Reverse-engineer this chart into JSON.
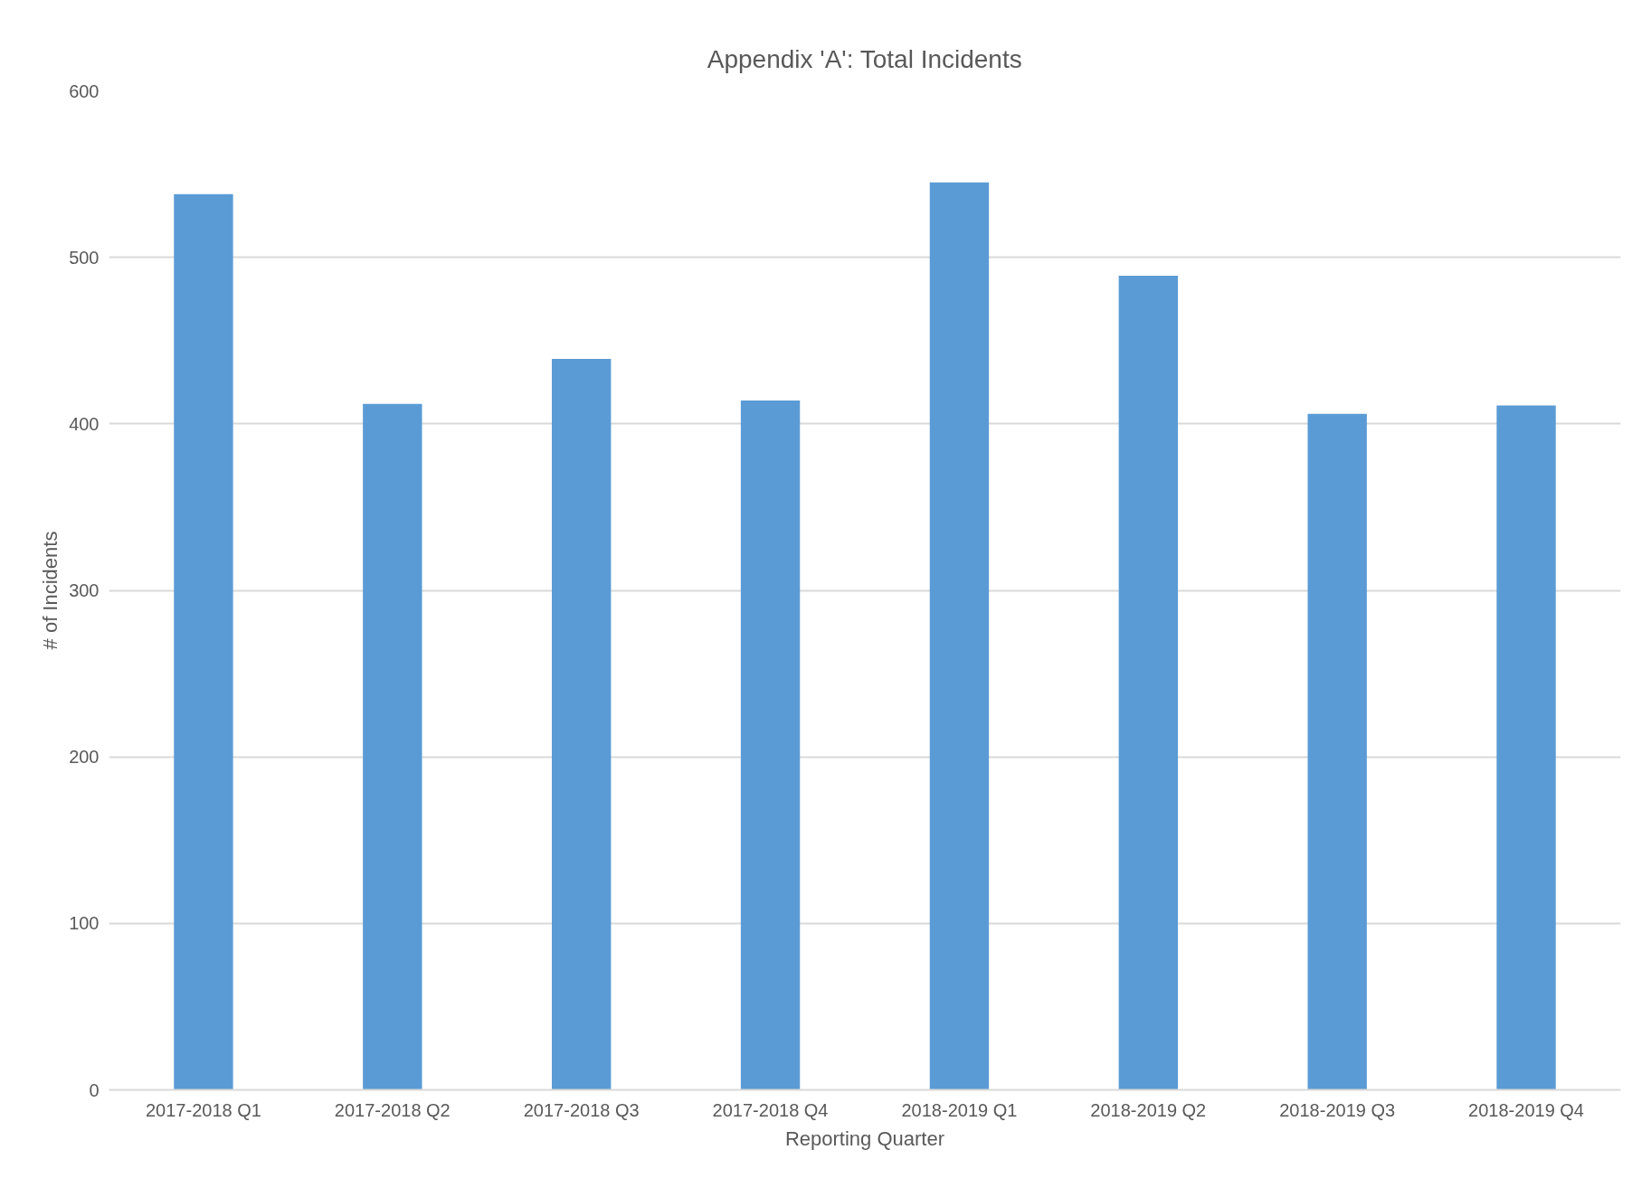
{
  "chart_data": {
    "type": "bar",
    "title": "Appendix 'A': Total Incidents",
    "xlabel": "Reporting Quarter",
    "ylabel": "# of Incidents",
    "categories": [
      "2017-2018 Q1",
      "2017-2018 Q2",
      "2017-2018 Q3",
      "2017-2018 Q4",
      "2018-2019 Q1",
      "2018-2019 Q2",
      "2018-2019 Q3",
      "2018-2019 Q4"
    ],
    "values": [
      538,
      412,
      439,
      414,
      545,
      489,
      406,
      411
    ],
    "color": "#5b9bd5",
    "ylim": [
      0,
      600
    ],
    "yticks": [
      0,
      100,
      200,
      300,
      400,
      500,
      600
    ],
    "grid": "y"
  }
}
